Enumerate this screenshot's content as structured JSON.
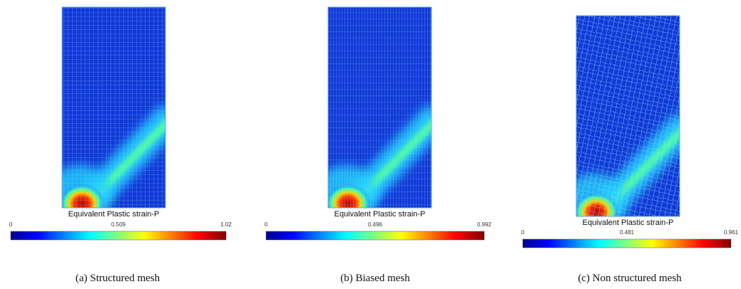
{
  "panels": [
    {
      "legend_title": "Equivalent Plastic strain-P",
      "ticks": [
        "0",
        "0.509",
        "1.02"
      ],
      "caption": "(a)  Structured mesh"
    },
    {
      "legend_title": "Equivalent Plastic strain-P",
      "ticks": [
        "0",
        "0.496",
        "0.992"
      ],
      "caption": "(b)  Biased mesh"
    },
    {
      "legend_title": "Equivalent Plastic strain-P",
      "ticks": [
        "0",
        "0.481",
        "0.961"
      ],
      "caption": "(c)  Non structured mesh"
    }
  ]
}
